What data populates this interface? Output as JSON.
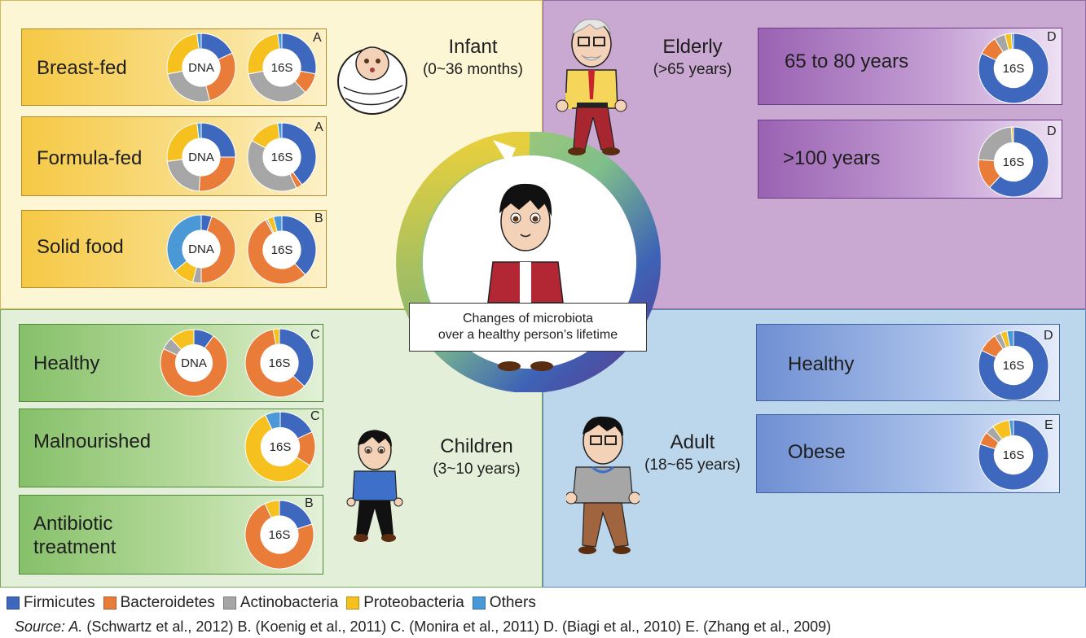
{
  "colors": {
    "firmicutes": "#3e67be",
    "bacteroidetes": "#ea7c3a",
    "actinobacteria": "#a6a6a6",
    "proteobacteria": "#f6c11e",
    "others": "#4a98d6"
  },
  "stages": {
    "infant": {
      "title": "Infant",
      "range": "(0~36 months)"
    },
    "elderly": {
      "title": "Elderly",
      "range": "(>65 years)"
    },
    "children": {
      "title": "Children",
      "range": "(3~10 years)"
    },
    "adult": {
      "title": "Adult",
      "range": "(18~65 years)"
    }
  },
  "groups": {
    "breastfed": {
      "label": "Breast-fed",
      "ref": "A"
    },
    "formulafed": {
      "label": "Formula-fed",
      "ref": "A"
    },
    "solidfood": {
      "label": "Solid food",
      "ref": "B"
    },
    "el_65_80": {
      "label": "65 to 80 years",
      "ref": "D"
    },
    "el_100": {
      "label": ">100 years",
      "ref": "D"
    },
    "ch_healthy": {
      "label": "Healthy",
      "ref": "C"
    },
    "malnourished": {
      "label": "Malnourished",
      "ref": "C"
    },
    "antibiotic": {
      "label1": "Antibiotic",
      "label2": "treatment",
      "ref": "B"
    },
    "ad_healthy": {
      "label": "Healthy",
      "ref": "D"
    },
    "obese": {
      "label": "Obese",
      "ref": "E"
    }
  },
  "donut_labels": {
    "dna": "DNA",
    "s16": "16S"
  },
  "center_note": {
    "line1": "Changes of microbiota",
    "line2": "over a healthy  person’s lifetime"
  },
  "legend": [
    {
      "name": "Firmicutes",
      "color": "#3e67be"
    },
    {
      "name": "Bacteroidetes",
      "color": "#ea7c3a"
    },
    {
      "name": "Actinobacteria",
      "color": "#a6a6a6"
    },
    {
      "name": "Proteobacteria",
      "color": "#f6c11e"
    },
    {
      "name": "Others",
      "color": "#4a98d6"
    }
  ],
  "source": {
    "label": "Source: A.",
    "text": " (Schwartz et al., 2012) B. (Koenig et al., 2011) C. (Monira et al., 2011) D. (Biagi et al., 2010) E. (Zhang et al., 2009)"
  },
  "chart_data": {
    "type": "pie",
    "order": [
      "Firmicutes",
      "Bacteroidetes",
      "Actinobacteria",
      "Proteobacteria",
      "Others"
    ],
    "donuts": [
      {
        "group": "Breast-fed",
        "method": "DNA",
        "values": [
          18,
          28,
          26,
          26,
          2
        ]
      },
      {
        "group": "Breast-fed",
        "method": "16S",
        "values": [
          28,
          10,
          34,
          26,
          2
        ]
      },
      {
        "group": "Formula-fed",
        "method": "DNA",
        "values": [
          25,
          26,
          22,
          25,
          2
        ]
      },
      {
        "group": "Formula-fed",
        "method": "16S",
        "values": [
          40,
          3,
          40,
          15,
          2
        ]
      },
      {
        "group": "Solid food",
        "method": "DNA",
        "values": [
          5,
          45,
          4,
          10,
          36
        ]
      },
      {
        "group": "Solid food",
        "method": "16S",
        "values": [
          38,
          54,
          1,
          3,
          4
        ]
      },
      {
        "group": "65 to 80 years",
        "method": "16S",
        "values": [
          82,
          9,
          5,
          3,
          1
        ]
      },
      {
        "group": ">100 years",
        "method": "16S",
        "values": [
          62,
          14,
          23,
          1,
          0
        ]
      },
      {
        "group": "Healthy (children)",
        "method": "DNA",
        "values": [
          10,
          72,
          6,
          12,
          0
        ]
      },
      {
        "group": "Healthy (children)",
        "method": "16S",
        "values": [
          37,
          60,
          0,
          3,
          0
        ]
      },
      {
        "group": "Malnourished",
        "method": "16S",
        "values": [
          18,
          16,
          0,
          59,
          7
        ]
      },
      {
        "group": "Antibiotic treatment",
        "method": "16S",
        "values": [
          20,
          73,
          0,
          7,
          0
        ]
      },
      {
        "group": "Healthy (adult)",
        "method": "16S",
        "values": [
          82,
          9,
          3,
          3,
          3
        ]
      },
      {
        "group": "Obese",
        "method": "16S",
        "values": [
          80,
          6,
          4,
          8,
          2
        ]
      }
    ]
  }
}
